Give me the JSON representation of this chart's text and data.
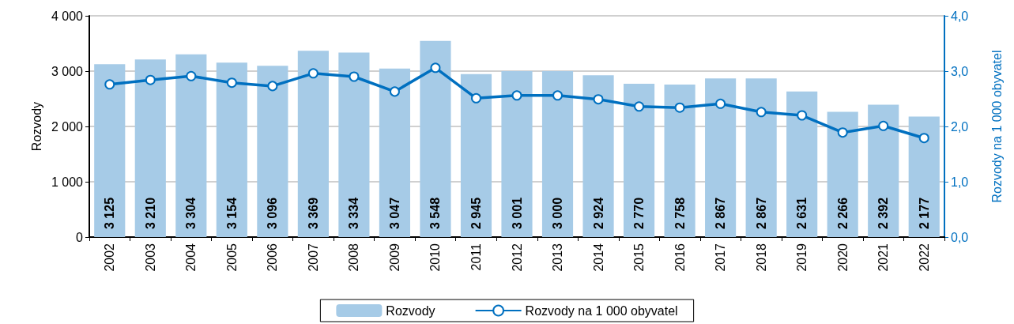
{
  "chart_data": {
    "type": "bar",
    "categories": [
      "2002",
      "2003",
      "2004",
      "2005",
      "2006",
      "2007",
      "2008",
      "2009",
      "2010",
      "2011",
      "2012",
      "2013",
      "2014",
      "2015",
      "2016",
      "2017",
      "2018",
      "2019",
      "2020",
      "2021",
      "2022"
    ],
    "series": [
      {
        "name": "Rozvody",
        "color": "#a6cbe7",
        "values": [
          3125,
          3210,
          3304,
          3154,
          3096,
          3369,
          3334,
          3047,
          3548,
          2945,
          3001,
          3000,
          2924,
          2770,
          2758,
          2867,
          2867,
          2631,
          2266,
          2392,
          2177
        ]
      },
      {
        "name": "Rozvody na 1 000 obyvatel",
        "type": "line",
        "axis": "y2",
        "color": "#0070c0",
        "marker": "circle",
        "values": [
          2.76,
          2.84,
          2.91,
          2.79,
          2.73,
          2.96,
          2.9,
          2.63,
          3.06,
          2.51,
          2.56,
          2.56,
          2.49,
          2.36,
          2.34,
          2.41,
          2.26,
          2.2,
          1.89,
          2.01,
          1.79
        ]
      }
    ],
    "ylabel": "Rozvody",
    "y2label": "Rozvody na 1 000 obyvatel",
    "ylim": [
      0,
      4000
    ],
    "yticks": [
      {
        "value": 0,
        "label": "0"
      },
      {
        "value": 1000,
        "label": "1 000"
      },
      {
        "value": 2000,
        "label": "2 000"
      },
      {
        "value": 3000,
        "label": "3 000"
      },
      {
        "value": 4000,
        "label": "4 000"
      }
    ],
    "y2lim": [
      0,
      4
    ],
    "y2ticks": [
      {
        "value": 0,
        "label": "0,0"
      },
      {
        "value": 1,
        "label": "1,0"
      },
      {
        "value": 2,
        "label": "2,0"
      },
      {
        "value": 3,
        "label": "3,0"
      },
      {
        "value": 4,
        "label": "4,0"
      }
    ],
    "value_labels": [
      "3 125",
      "3 210",
      "3 304",
      "3 154",
      "3 096",
      "3 369",
      "3 334",
      "3 047",
      "3 548",
      "2 945",
      "3 001",
      "3 000",
      "2 924",
      "2 770",
      "2 758",
      "2 867",
      "2 867",
      "2 631",
      "2 266",
      "2 392",
      "2 177"
    ],
    "grid": "y",
    "legend": "bottom"
  }
}
